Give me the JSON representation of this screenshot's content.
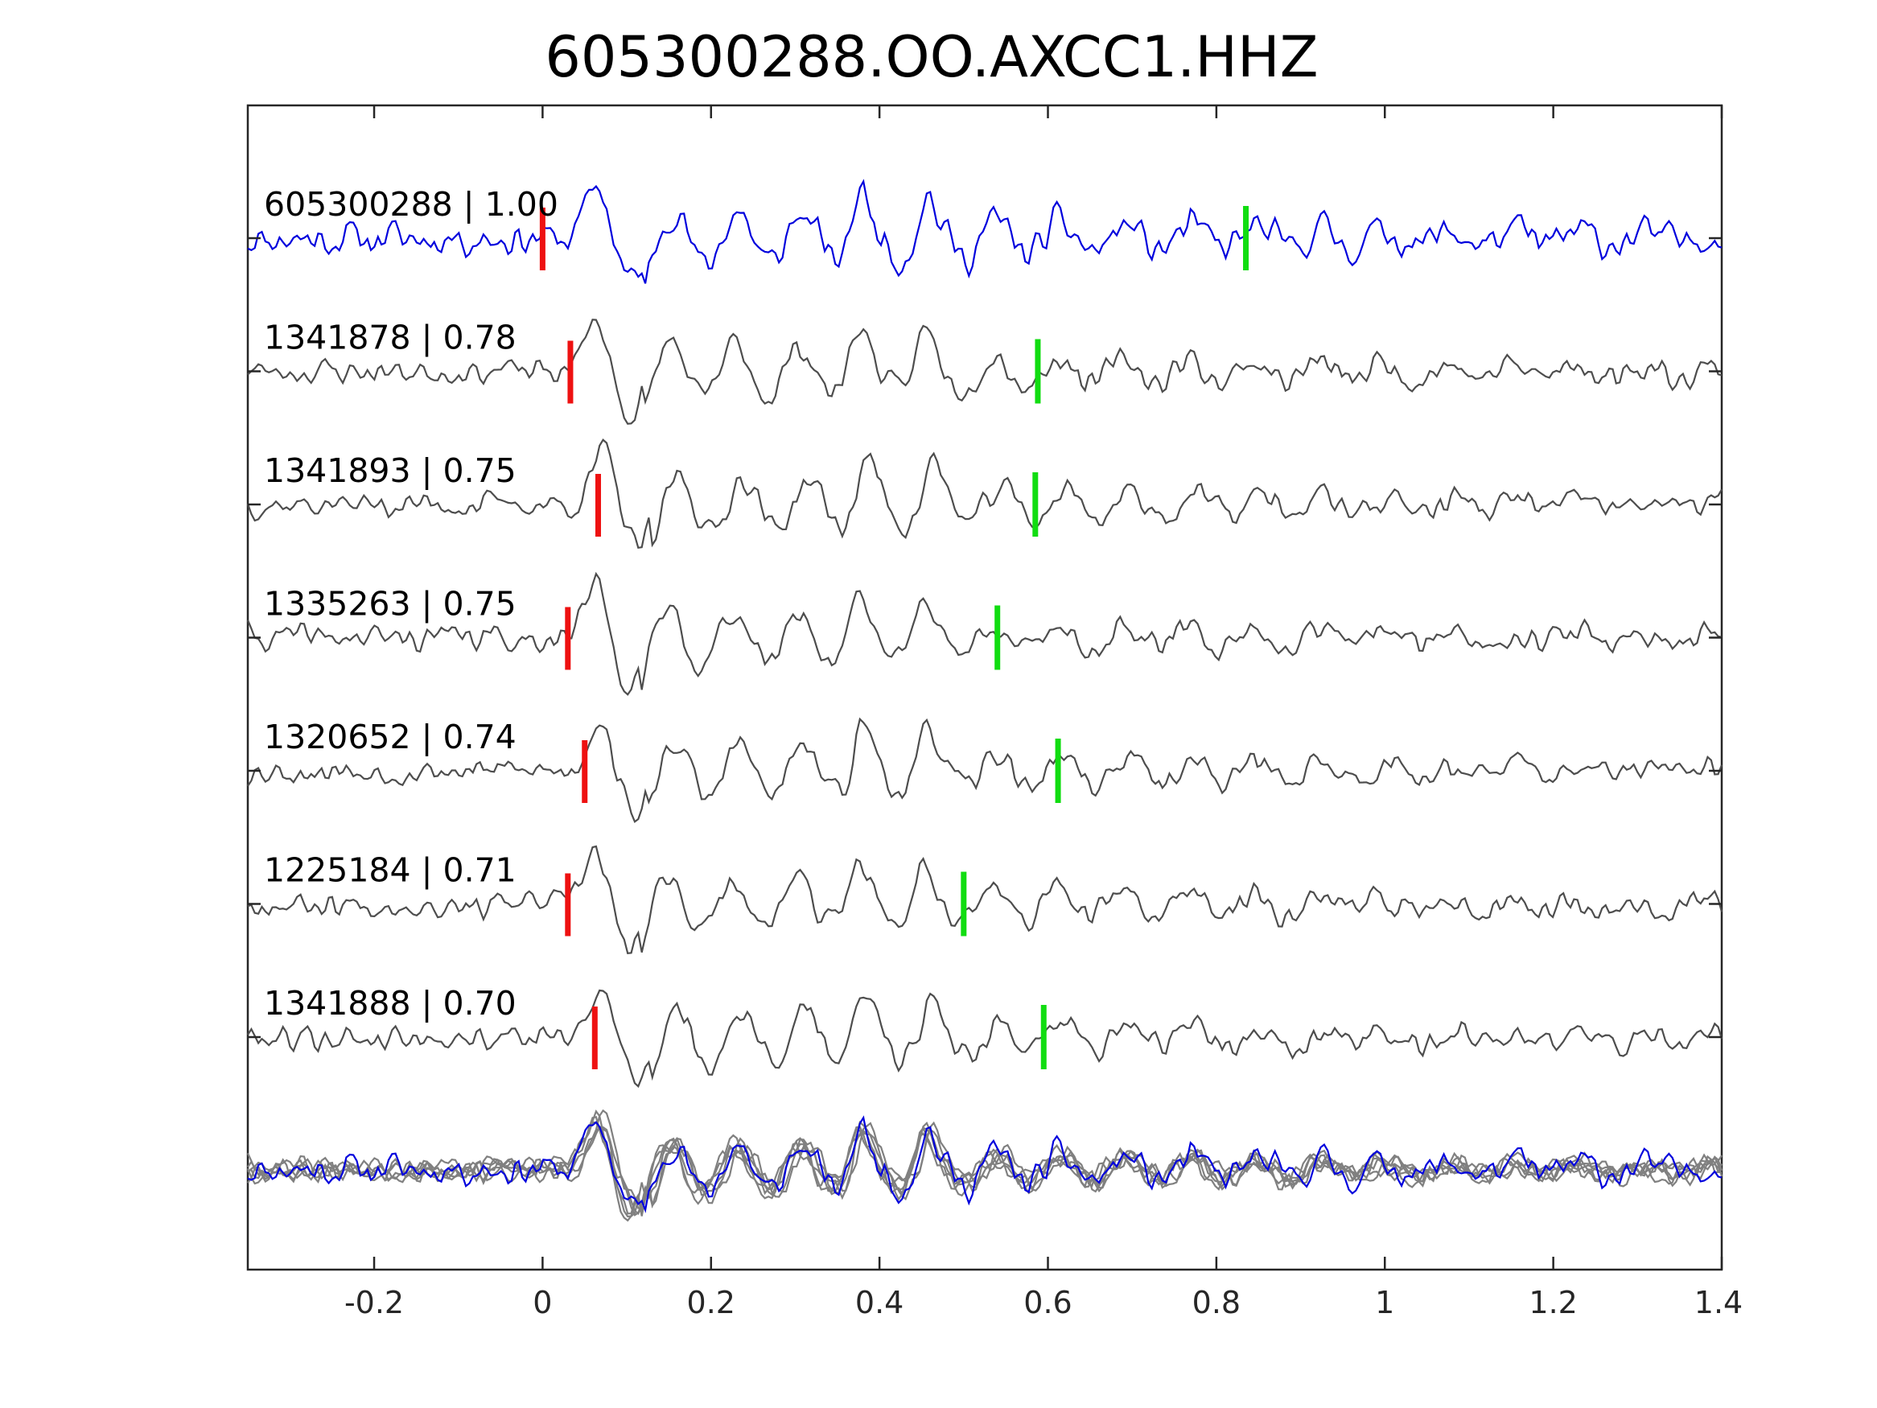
{
  "chart_data": {
    "type": "line",
    "title": "605300288.OO.AXCC1.HHZ",
    "xlabel": "",
    "ylabel": "",
    "xlim": [
      -0.35,
      1.4
    ],
    "xticks": [
      -0.2,
      0,
      0.2,
      0.4,
      0.6,
      0.8,
      1,
      1.2,
      1.4
    ],
    "xtick_labels": [
      "-0.2",
      "0",
      "0.2",
      "0.4",
      "0.6",
      "0.8",
      "1",
      "1.2",
      "1.4"
    ],
    "grid": false,
    "colors": {
      "template": "#0000dd",
      "match": "#4d4d4d",
      "overlay": "#808080",
      "p_pick": "#ee1111",
      "s_pick": "#11dd11"
    },
    "traces": [
      {
        "id": "605300288",
        "cc": "1.00",
        "label": "605300288 | 1.00",
        "p_pick": 0.0,
        "s_pick": 0.835,
        "color": "template",
        "seed": 11
      },
      {
        "id": "1341878",
        "cc": "0.78",
        "label": "1341878 | 0.78",
        "p_pick": 0.033,
        "s_pick": 0.588,
        "color": "match",
        "seed": 23
      },
      {
        "id": "1341893",
        "cc": "0.75",
        "label": "1341893 | 0.75",
        "p_pick": 0.066,
        "s_pick": 0.585,
        "color": "match",
        "seed": 37
      },
      {
        "id": "1335263",
        "cc": "0.75",
        "label": "1335263 | 0.75",
        "p_pick": 0.03,
        "s_pick": 0.54,
        "color": "match",
        "seed": 41
      },
      {
        "id": "1320652",
        "cc": "0.74",
        "label": "1320652 | 0.74",
        "p_pick": 0.05,
        "s_pick": 0.612,
        "color": "match",
        "seed": 53
      },
      {
        "id": "1225184",
        "cc": "0.71",
        "label": "1225184 | 0.71",
        "p_pick": 0.03,
        "s_pick": 0.5,
        "color": "match",
        "seed": 67
      },
      {
        "id": "1341888",
        "cc": "0.70",
        "label": "1341888 | 0.70",
        "p_pick": 0.062,
        "s_pick": 0.595,
        "color": "match",
        "seed": 79
      }
    ]
  }
}
